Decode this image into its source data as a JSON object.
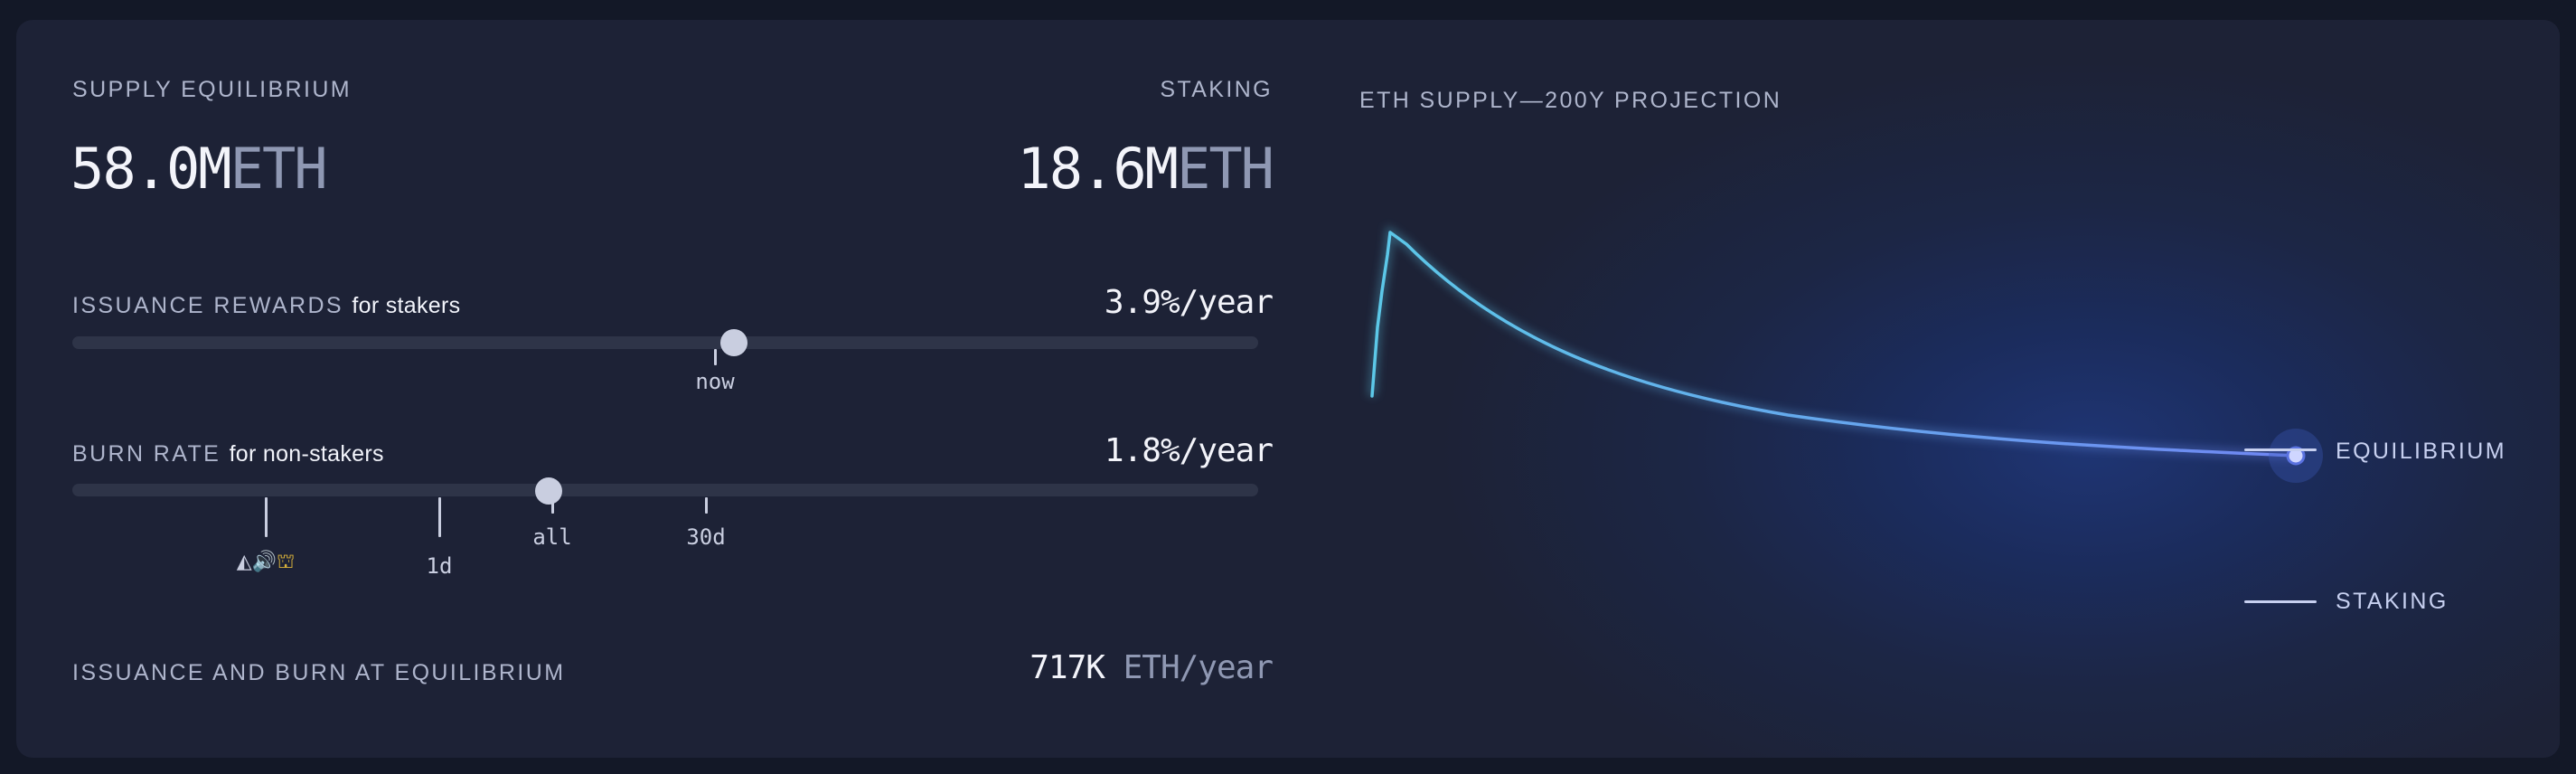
{
  "supply_equilibrium": {
    "label": "SUPPLY EQUILIBRIUM",
    "value": "58.0M",
    "unit": "ETH"
  },
  "staking": {
    "label": "STAKING",
    "value": "18.6M",
    "unit": "ETH"
  },
  "issuance": {
    "label": "ISSUANCE REWARDS",
    "sub": "for stakers",
    "rate": "3.9%/year",
    "slider_fraction": 0.558,
    "tick_label": "now"
  },
  "burn": {
    "label": "BURN RATE",
    "sub": "for non-stakers",
    "rate": "1.8%/year",
    "slider_fraction": 0.402,
    "ticks": [
      {
        "id": "emoji",
        "icons": [
          "bat-icon",
          "speaker-icon",
          "barrier-icon"
        ]
      },
      {
        "id": "1d",
        "label": "1d"
      },
      {
        "id": "all",
        "label": "all"
      },
      {
        "id": "30d",
        "label": "30d"
      }
    ]
  },
  "equilibrium_flow": {
    "label": "ISSUANCE AND BURN AT EQUILIBRIUM",
    "value": "717K",
    "unit": "ETH/year"
  },
  "projection": {
    "title": "ETH SUPPLY—200Y PROJECTION",
    "legend_equilibrium": "EQUILIBRIUM",
    "legend_staking": "STAKING"
  },
  "colors": {
    "background": "#131827",
    "card": "#1d2236",
    "track": "#2e3448",
    "knob": "#c9cee0",
    "curve_start": "#5cc8e8",
    "curve_end": "#6f86f2"
  }
}
